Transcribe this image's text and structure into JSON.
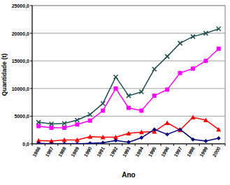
{
  "chart_data": {
    "type": "line",
    "x_label": "Ano",
    "y_label": "Quantidade (t)",
    "categories": [
      "1986",
      "1987",
      "1988",
      "1989",
      "1990",
      "1991",
      "1992",
      "1993",
      "1994",
      "1995",
      "1996",
      "1997",
      "1998",
      "1999",
      "2000"
    ],
    "series": [
      {
        "color": "#1f4f4f",
        "marker": "x",
        "values": [
          3900,
          3600,
          3700,
          4300,
          5300,
          7300,
          12100,
          8700,
          9400,
          13500,
          15800,
          18200,
          19400,
          20000,
          20800
        ]
      },
      {
        "color": "#ff00ff",
        "marker": "square",
        "values": [
          3200,
          2900,
          2900,
          3500,
          4200,
          6000,
          10000,
          6500,
          6000,
          8700,
          9800,
          12800,
          13600,
          15000,
          17200
        ]
      },
      {
        "color": "#ff0000",
        "marker": "triangle",
        "values": [
          600,
          500,
          700,
          700,
          1300,
          1200,
          1200,
          1900,
          2100,
          2200,
          3800,
          2500,
          4800,
          4300,
          2600
        ]
      },
      {
        "color": "#000080",
        "marker": "diamond",
        "values": [
          100,
          0,
          0,
          0,
          100,
          200,
          600,
          300,
          1100,
          2600,
          1700,
          2600,
          800,
          500,
          1000
        ]
      }
    ],
    "ylim": [
      0,
      25000
    ],
    "yticks": [
      {
        "value": 0,
        "label": "0,0"
      },
      {
        "value": 5000,
        "label": "5000,0"
      },
      {
        "value": 10000,
        "label": "10000,0"
      },
      {
        "value": 15000,
        "label": "15000,0"
      },
      {
        "value": 20000,
        "label": "20000,0"
      },
      {
        "value": 25000,
        "label": "25000,0"
      }
    ],
    "grid": true
  }
}
